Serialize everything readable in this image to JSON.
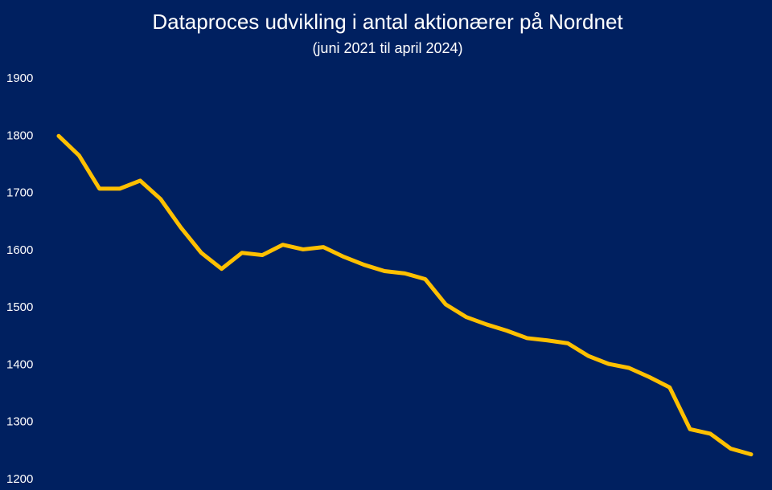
{
  "chart_data": {
    "type": "line",
    "title": "Dataproces udvikling i antal aktionærer på Nordnet",
    "subtitle": "(juni 2021 til april 2024)",
    "categories": [
      null,
      null,
      null,
      null,
      null,
      null,
      null,
      null,
      null,
      null,
      null,
      null,
      null,
      null,
      null,
      null,
      null,
      null,
      null,
      null,
      null,
      null,
      null,
      null,
      null,
      null,
      null,
      null,
      null,
      null,
      null,
      null,
      null,
      null,
      null
    ],
    "series": [
      {
        "color": "#ffc000",
        "values": [
          1800,
          1766,
          1708,
          1708,
          1722,
          1690,
          1640,
          1596,
          1568,
          1596,
          1592,
          1610,
          1602,
          1606,
          1589,
          1575,
          1564,
          1560,
          1550,
          1506,
          1484,
          1471,
          1460,
          1447,
          1443,
          1438,
          1416,
          1402,
          1395,
          1379,
          1361,
          1288,
          1280,
          1254,
          1244
        ]
      }
    ],
    "ylim": [
      1200,
      1900
    ],
    "yticks": [
      1200,
      1300,
      1400,
      1500,
      1600,
      1700,
      1800,
      1900
    ],
    "grid": false,
    "background": "#002060"
  }
}
